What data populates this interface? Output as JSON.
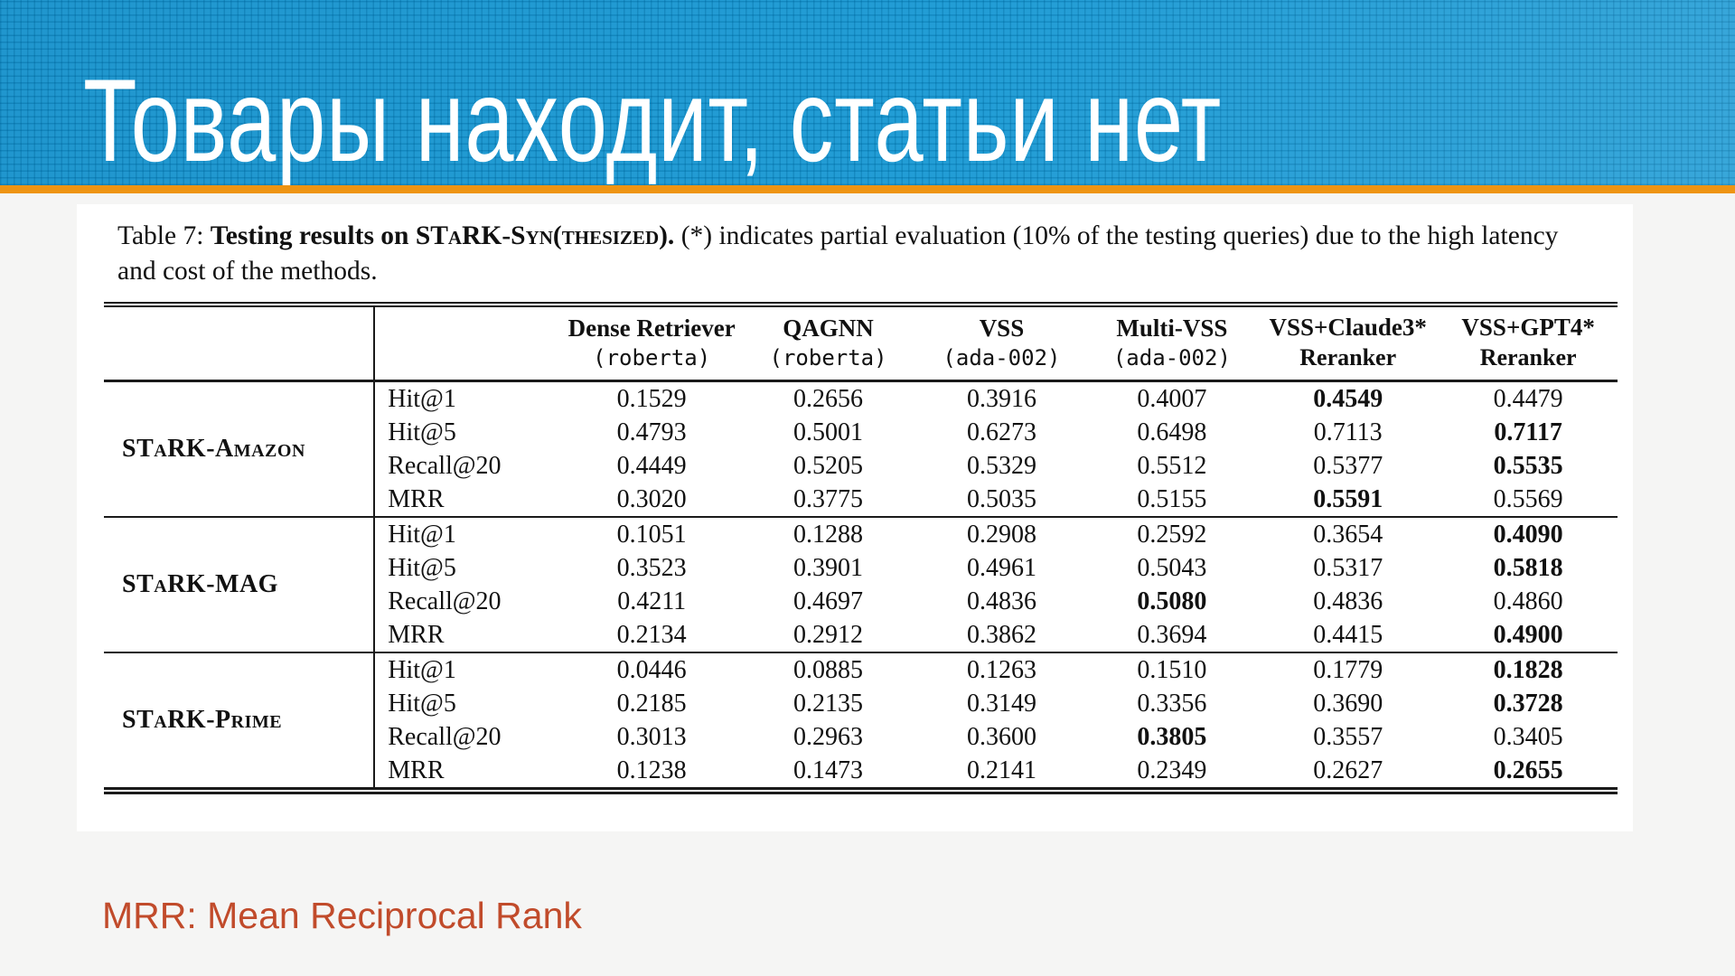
{
  "slide": {
    "title": "Товары находит, статьи нет",
    "note": "MRR: Mean Reciprocal Rank",
    "colors": {
      "header_blue": "#1095d2",
      "header_grid_line": "#0d84bd",
      "accent_orange": "#ee9413",
      "note_red": "#c14b2b",
      "panel_bg": "#ffffff",
      "slide_bg": "#f5f5f4"
    }
  },
  "table": {
    "caption": {
      "prefix": "Table 7: ",
      "bold_pre": "Testing results on ",
      "bold_smallcaps": "STaRK-Syn(thesized).",
      "rest": " (*) indicates partial evaluation (10% of the testing queries) due to the high latency and cost of the methods."
    },
    "columns": [
      {
        "name": "Dense Retriever",
        "sub": "(roberta)",
        "sub_mono": true
      },
      {
        "name": "QAGNN",
        "sub": "(roberta)",
        "sub_mono": true
      },
      {
        "name": "VSS",
        "sub": "(ada-002)",
        "sub_mono": true
      },
      {
        "name": "Multi-VSS",
        "sub": "(ada-002)",
        "sub_mono": true
      },
      {
        "name": "VSS+Claude3*",
        "sub": "Reranker",
        "sub_mono": false
      },
      {
        "name": "VSS+GPT4*",
        "sub": "Reranker",
        "sub_mono": false
      }
    ],
    "groups": [
      {
        "label": "STaRK-Amazon",
        "rows": [
          {
            "metric": "Hit@1",
            "values": [
              "0.1529",
              "0.2656",
              "0.3916",
              "0.4007",
              "0.4549",
              "0.4479"
            ],
            "bold": 4
          },
          {
            "metric": "Hit@5",
            "values": [
              "0.4793",
              "0.5001",
              "0.6273",
              "0.6498",
              "0.7113",
              "0.7117"
            ],
            "bold": 5
          },
          {
            "metric": "Recall@20",
            "values": [
              "0.4449",
              "0.5205",
              "0.5329",
              "0.5512",
              "0.5377",
              "0.5535"
            ],
            "bold": 5
          },
          {
            "metric": "MRR",
            "values": [
              "0.3020",
              "0.3775",
              "0.5035",
              "0.5155",
              "0.5591",
              "0.5569"
            ],
            "bold": 4
          }
        ]
      },
      {
        "label": "STaRK-MAG",
        "rows": [
          {
            "metric": "Hit@1",
            "values": [
              "0.1051",
              "0.1288",
              "0.2908",
              "0.2592",
              "0.3654",
              "0.4090"
            ],
            "bold": 5
          },
          {
            "metric": "Hit@5",
            "values": [
              "0.3523",
              "0.3901",
              "0.4961",
              "0.5043",
              "0.5317",
              "0.5818"
            ],
            "bold": 5
          },
          {
            "metric": "Recall@20",
            "values": [
              "0.4211",
              "0.4697",
              "0.4836",
              "0.5080",
              "0.4836",
              "0.4860"
            ],
            "bold": 3
          },
          {
            "metric": "MRR",
            "values": [
              "0.2134",
              "0.2912",
              "0.3862",
              "0.3694",
              "0.4415",
              "0.4900"
            ],
            "bold": 5
          }
        ]
      },
      {
        "label": "STaRK-Prime",
        "rows": [
          {
            "metric": "Hit@1",
            "values": [
              "0.0446",
              "0.0885",
              "0.1263",
              "0.1510",
              "0.1779",
              "0.1828"
            ],
            "bold": 5
          },
          {
            "metric": "Hit@5",
            "values": [
              "0.2185",
              "0.2135",
              "0.3149",
              "0.3356",
              "0.3690",
              "0.3728"
            ],
            "bold": 5
          },
          {
            "metric": "Recall@20",
            "values": [
              "0.3013",
              "0.2963",
              "0.3600",
              "0.3805",
              "0.3557",
              "0.3405"
            ],
            "bold": 3
          },
          {
            "metric": "MRR",
            "values": [
              "0.1238",
              "0.1473",
              "0.2141",
              "0.2349",
              "0.2627",
              "0.2655"
            ],
            "bold": 5
          }
        ]
      }
    ]
  }
}
